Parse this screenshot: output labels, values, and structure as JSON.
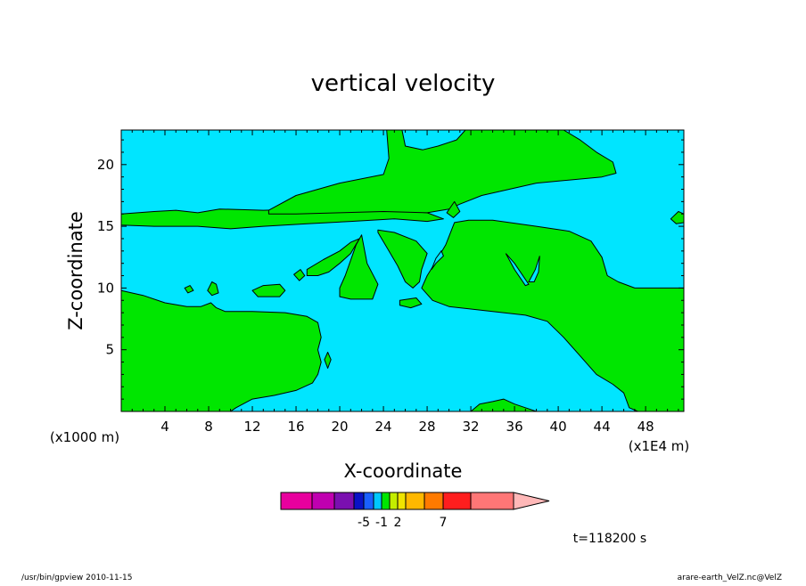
{
  "chart_data": {
    "type": "contour",
    "title": "vertical velocity",
    "xlabel": "X-coordinate",
    "ylabel": "Z-coordinate",
    "x_units": "(x1E4 m)",
    "y_units": "(x1000 m)",
    "xlim": [
      0,
      51.5
    ],
    "ylim": [
      0,
      22.8
    ],
    "x_ticks": [
      4,
      8,
      12,
      16,
      20,
      24,
      28,
      32,
      36,
      40,
      44,
      48
    ],
    "y_ticks": [
      5,
      10,
      15,
      20
    ],
    "background_level_color": "#00e5ff",
    "positive_region_color": "#00e600",
    "regions_positive": [
      [
        [
          0,
          16
        ],
        [
          3,
          16.2
        ],
        [
          5,
          16.3
        ],
        [
          7,
          16.1
        ],
        [
          9,
          16.4
        ],
        [
          13,
          16.3
        ],
        [
          17,
          16.4
        ],
        [
          21,
          16.5
        ],
        [
          25,
          16.3
        ],
        [
          28,
          16.1
        ],
        [
          29.5,
          15.6
        ],
        [
          28,
          15.4
        ],
        [
          25,
          15.6
        ],
        [
          21,
          15.4
        ],
        [
          17,
          15.2
        ],
        [
          13,
          15
        ],
        [
          10,
          14.8
        ],
        [
          7,
          15
        ],
        [
          3,
          15
        ],
        [
          0,
          15.1
        ]
      ],
      [
        [
          13.5,
          16.3
        ],
        [
          16,
          17.5
        ],
        [
          20,
          18.5
        ],
        [
          24,
          19.2
        ],
        [
          24.5,
          20.5
        ],
        [
          24.3,
          22.8
        ],
        [
          25.7,
          22.8
        ],
        [
          26,
          21.5
        ],
        [
          27.6,
          21.2
        ],
        [
          29,
          21.5
        ],
        [
          30.7,
          22
        ],
        [
          31.5,
          22.8
        ],
        [
          40.5,
          22.8
        ],
        [
          42,
          22
        ],
        [
          43.5,
          21
        ],
        [
          45,
          20.2
        ],
        [
          45.3,
          19.3
        ],
        [
          44,
          19
        ],
        [
          38,
          18.5
        ],
        [
          33,
          17.5
        ],
        [
          31,
          16.8
        ],
        [
          30,
          16.4
        ],
        [
          28,
          16.1
        ],
        [
          24,
          16.2
        ],
        [
          20,
          16.1
        ],
        [
          16,
          16
        ],
        [
          13.5,
          16
        ]
      ],
      [
        [
          29.8,
          16.1
        ],
        [
          30.5,
          17
        ],
        [
          31,
          16.2
        ],
        [
          30.4,
          15.7
        ]
      ],
      [
        [
          30.5,
          15.3
        ],
        [
          31.8,
          15.5
        ],
        [
          34,
          15.5
        ],
        [
          38,
          15
        ],
        [
          41,
          14.6
        ],
        [
          43,
          13.8
        ],
        [
          44,
          12.5
        ],
        [
          44.5,
          11
        ],
        [
          45.5,
          10.5
        ],
        [
          47,
          10
        ],
        [
          48.5,
          10
        ],
        [
          51.5,
          10
        ],
        [
          51.5,
          0
        ],
        [
          47.3,
          0
        ],
        [
          46.5,
          0.3
        ],
        [
          46,
          1.5
        ],
        [
          45,
          2.2
        ],
        [
          43.5,
          3
        ],
        [
          42,
          4.5
        ],
        [
          40.5,
          6
        ],
        [
          39,
          7.3
        ],
        [
          37,
          7.8
        ],
        [
          35,
          8
        ],
        [
          32,
          8.3
        ],
        [
          30,
          8.5
        ],
        [
          28.5,
          9
        ],
        [
          27.5,
          10
        ],
        [
          28,
          11
        ],
        [
          28.7,
          12
        ],
        [
          29.7,
          13.5
        ]
      ],
      [
        [
          0,
          9.8
        ],
        [
          2,
          9.4
        ],
        [
          4,
          8.8
        ],
        [
          6,
          8.5
        ],
        [
          7.3,
          8.5
        ],
        [
          8.2,
          8.8
        ],
        [
          8.7,
          8.4
        ],
        [
          9.5,
          8.1
        ],
        [
          12,
          8.1
        ],
        [
          15,
          8
        ],
        [
          17,
          7.7
        ],
        [
          18,
          7.2
        ],
        [
          18.3,
          6
        ],
        [
          18,
          5
        ],
        [
          18.3,
          4
        ],
        [
          18,
          3
        ],
        [
          17.5,
          2.3
        ],
        [
          16,
          1.7
        ],
        [
          14,
          1.3
        ],
        [
          12,
          1
        ],
        [
          10.5,
          0.3
        ],
        [
          10,
          0
        ],
        [
          0,
          0
        ]
      ],
      [
        [
          20,
          10
        ],
        [
          20.5,
          11
        ],
        [
          21.5,
          13.5
        ],
        [
          22,
          14.3
        ],
        [
          22.5,
          12
        ],
        [
          23.5,
          10.3
        ],
        [
          23,
          9.1
        ],
        [
          21,
          9.1
        ],
        [
          20,
          9.3
        ]
      ],
      [
        [
          23.5,
          14.5
        ],
        [
          24.5,
          13
        ],
        [
          25.3,
          11.8
        ],
        [
          26,
          10.5
        ],
        [
          26.7,
          10
        ],
        [
          27.3,
          10.5
        ],
        [
          27.5,
          11.5
        ],
        [
          28,
          12.8
        ],
        [
          27,
          13.8
        ],
        [
          25,
          14.5
        ],
        [
          23.5,
          14.7
        ]
      ],
      [
        [
          17,
          11.5
        ],
        [
          18.5,
          12.3
        ],
        [
          20,
          13
        ],
        [
          21,
          13.7
        ],
        [
          21.8,
          14
        ],
        [
          21,
          12.8
        ],
        [
          20,
          12
        ],
        [
          19,
          11.3
        ],
        [
          18,
          11
        ],
        [
          17,
          11
        ]
      ],
      [
        [
          15.8,
          11.1
        ],
        [
          16.4,
          11.5
        ],
        [
          16.8,
          11
        ],
        [
          16.3,
          10.6
        ]
      ],
      [
        [
          12,
          9.8
        ],
        [
          13,
          10.2
        ],
        [
          14.5,
          10.3
        ],
        [
          15,
          9.8
        ],
        [
          14.5,
          9.3
        ],
        [
          12.5,
          9.3
        ]
      ],
      [
        [
          25.5,
          9
        ],
        [
          27,
          9.2
        ],
        [
          27.5,
          8.7
        ],
        [
          26.5,
          8.4
        ],
        [
          25.5,
          8.6
        ]
      ],
      [
        [
          5.8,
          10
        ],
        [
          6.3,
          10.2
        ],
        [
          6.6,
          9.8
        ],
        [
          6.1,
          9.6
        ]
      ],
      [
        [
          7.9,
          9.8
        ],
        [
          8.3,
          10.5
        ],
        [
          8.7,
          10.3
        ],
        [
          8.9,
          9.6
        ],
        [
          8.3,
          9.4
        ]
      ],
      [
        [
          18.6,
          4.2
        ],
        [
          18.9,
          4.8
        ],
        [
          19.2,
          4.2
        ],
        [
          18.9,
          3.5
        ]
      ],
      [
        [
          32,
          0
        ],
        [
          32.8,
          0.6
        ],
        [
          34,
          0.8
        ],
        [
          35,
          1
        ],
        [
          36,
          0.6
        ],
        [
          37,
          0.3
        ],
        [
          38,
          0
        ]
      ],
      [
        [
          50.3,
          15.6
        ],
        [
          51,
          16.2
        ],
        [
          51.5,
          16
        ],
        [
          51.5,
          15.3
        ],
        [
          50.8,
          15.2
        ]
      ]
    ],
    "regions_negative_inside": [
      [
        [
          28.4,
          11.5
        ],
        [
          28.8,
          12.4
        ],
        [
          29.3,
          13
        ],
        [
          29.5,
          12.6
        ],
        [
          28.8,
          12
        ]
      ],
      [
        [
          35.2,
          12.8
        ],
        [
          36,
          12
        ],
        [
          37.3,
          10.3
        ],
        [
          37,
          10.2
        ],
        [
          36,
          11.5
        ]
      ],
      [
        [
          37.3,
          10.5
        ],
        [
          37.9,
          11.5
        ],
        [
          38.3,
          12.6
        ],
        [
          38.2,
          11.3
        ],
        [
          37.8,
          10.5
        ]
      ]
    ],
    "colorbar": {
      "colors": [
        "#e8009e",
        "#c000b0",
        "#7a10b0",
        "#0a12c6",
        "#1a60ff",
        "#00c8ff",
        "#00e600",
        "#c4ee00",
        "#f0e400",
        "#ffb800",
        "#ff7a00",
        "#ff1e1e",
        "#ff7676",
        "#ffb8b8"
      ],
      "labels": [
        {
          "text": "-5",
          "boundary": 4
        },
        {
          "text": "-1",
          "boundary": 6
        },
        {
          "text": "2",
          "boundary": 8
        },
        {
          "text": "7",
          "boundary": 11
        }
      ]
    },
    "time_label": "t=118200 s",
    "footer_left": "/usr/bin/gpview   2010-11-15",
    "footer_right": "arare-earth_VelZ.nc@VelZ"
  }
}
